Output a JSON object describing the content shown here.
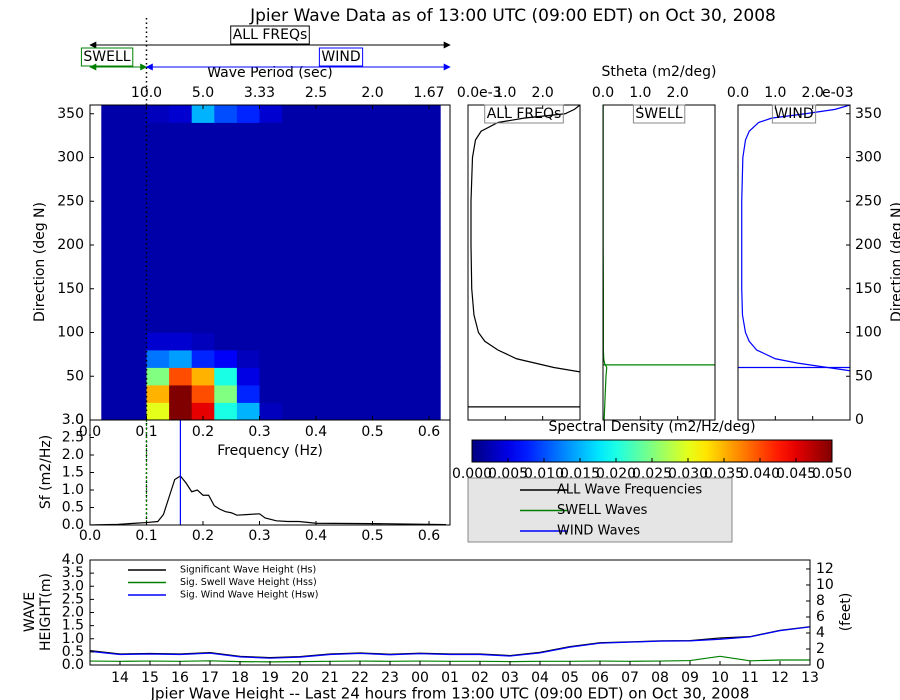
{
  "chart_data": [
    {
      "type": "heatmap",
      "title": "Jpier Wave Data as of 13:00 UTC (09:00 EDT) on Oct 30, 2008",
      "annotations": {
        "all": "ALL FREQs",
        "swell": "SWELL",
        "wind": "WIND"
      },
      "separation_frequency": 0.1,
      "xlabel": "Frequency (Hz)",
      "ylabel": "Direction (deg N)",
      "x2label": "Wave Period (sec)",
      "xlim": [
        0,
        0.64
      ],
      "ylim": [
        0,
        360
      ],
      "xticks": [
        {
          "value": 0,
          "label": "0.0"
        },
        0.1,
        0.2,
        0.3,
        0.4,
        0.5,
        0.6
      ],
      "yticks": [
        0,
        50,
        100,
        150,
        200,
        250,
        300,
        350
      ],
      "x2ticks": [
        {
          "value": 0.1,
          "label": "10.0"
        },
        {
          "value": 0.2,
          "label": "5.0"
        },
        {
          "value": 0.3,
          "label": "3.33"
        },
        {
          "value": 0.4,
          "label": "2.5"
        },
        {
          "value": 0.5,
          "label": "2.0"
        },
        {
          "value": 0.6,
          "label": "1.67"
        }
      ],
      "x_edges": [
        0.02,
        0.06,
        0.1,
        0.14,
        0.18,
        0.22,
        0.26,
        0.3,
        0.34,
        0.38,
        0.42,
        0.46,
        0.5,
        0.54,
        0.58,
        0.62
      ],
      "y_edges": [
        0,
        20,
        40,
        60,
        80,
        100,
        120,
        140,
        160,
        180,
        200,
        220,
        240,
        260,
        280,
        300,
        320,
        340,
        360
      ],
      "z": [
        [
          0.002,
          0.002,
          0.03,
          0.05,
          0.045,
          0.02,
          0.015,
          0.003,
          0.002,
          0.002,
          0.002,
          0.002,
          0.002,
          0.002,
          0.002
        ],
        [
          0.002,
          0.002,
          0.035,
          0.05,
          0.04,
          0.025,
          0.008,
          0.002,
          0.002,
          0.002,
          0.002,
          0.002,
          0.002,
          0.002,
          0.002
        ],
        [
          0.002,
          0.002,
          0.025,
          0.04,
          0.035,
          0.02,
          0.005,
          0.002,
          0.002,
          0.002,
          0.002,
          0.002,
          0.002,
          0.002,
          0.002
        ],
        [
          0.002,
          0.002,
          0.012,
          0.014,
          0.008,
          0.006,
          0.003,
          0.002,
          0.002,
          0.002,
          0.002,
          0.002,
          0.002,
          0.002,
          0.002
        ],
        [
          0.002,
          0.002,
          0.004,
          0.004,
          0.003,
          0.002,
          0.002,
          0.002,
          0.002,
          0.002,
          0.002,
          0.002,
          0.002,
          0.002,
          0.002
        ],
        [
          0.002,
          0.002,
          0.002,
          0.002,
          0.002,
          0.002,
          0.002,
          0.002,
          0.002,
          0.002,
          0.002,
          0.002,
          0.002,
          0.002,
          0.002
        ],
        [
          0.002,
          0.002,
          0.002,
          0.002,
          0.002,
          0.002,
          0.002,
          0.002,
          0.002,
          0.002,
          0.002,
          0.002,
          0.002,
          0.002,
          0.002
        ],
        [
          0.002,
          0.002,
          0.002,
          0.002,
          0.002,
          0.002,
          0.002,
          0.002,
          0.002,
          0.002,
          0.002,
          0.002,
          0.002,
          0.002,
          0.002
        ],
        [
          0.002,
          0.002,
          0.002,
          0.002,
          0.002,
          0.002,
          0.002,
          0.002,
          0.002,
          0.002,
          0.002,
          0.002,
          0.002,
          0.002,
          0.002
        ],
        [
          0.002,
          0.002,
          0.002,
          0.002,
          0.002,
          0.002,
          0.002,
          0.002,
          0.002,
          0.002,
          0.002,
          0.002,
          0.002,
          0.002,
          0.002
        ],
        [
          0.002,
          0.002,
          0.002,
          0.002,
          0.002,
          0.002,
          0.002,
          0.002,
          0.002,
          0.002,
          0.002,
          0.002,
          0.002,
          0.002,
          0.002
        ],
        [
          0.002,
          0.002,
          0.002,
          0.002,
          0.002,
          0.002,
          0.002,
          0.002,
          0.002,
          0.002,
          0.002,
          0.002,
          0.002,
          0.002,
          0.002
        ],
        [
          0.002,
          0.002,
          0.002,
          0.002,
          0.002,
          0.002,
          0.002,
          0.002,
          0.002,
          0.002,
          0.002,
          0.002,
          0.002,
          0.002,
          0.002
        ],
        [
          0.002,
          0.002,
          0.002,
          0.002,
          0.002,
          0.002,
          0.002,
          0.002,
          0.002,
          0.002,
          0.002,
          0.002,
          0.002,
          0.002,
          0.002
        ],
        [
          0.002,
          0.002,
          0.002,
          0.002,
          0.002,
          0.002,
          0.002,
          0.002,
          0.002,
          0.002,
          0.002,
          0.002,
          0.002,
          0.002,
          0.002
        ],
        [
          0.002,
          0.002,
          0.002,
          0.002,
          0.002,
          0.002,
          0.002,
          0.002,
          0.002,
          0.002,
          0.002,
          0.002,
          0.002,
          0.002,
          0.002
        ],
        [
          0.002,
          0.002,
          0.002,
          0.002,
          0.002,
          0.002,
          0.002,
          0.002,
          0.002,
          0.002,
          0.002,
          0.002,
          0.002,
          0.002,
          0.002
        ],
        [
          0.002,
          0.002,
          0.003,
          0.004,
          0.015,
          0.01,
          0.008,
          0.004,
          0.002,
          0.002,
          0.002,
          0.002,
          0.002,
          0.002,
          0.002
        ]
      ],
      "colorbar": {
        "label": "Spectral Density (m2/Hz/deg)",
        "colormap": "jet",
        "lim": [
          0,
          0.05
        ],
        "ticks": [
          {
            "value": 0,
            "label": "0.000"
          },
          0.005,
          {
            "value": 0.01,
            "label": "0.010"
          },
          0.015,
          {
            "value": 0.02,
            "label": "0.020"
          },
          0.025,
          {
            "value": 0.03,
            "label": "0.030"
          },
          0.035,
          {
            "value": 0.04,
            "label": "0.040"
          },
          0.045,
          {
            "value": 0.05,
            "label": "0.050"
          }
        ]
      }
    },
    {
      "type": "line",
      "title": "ALL FREQs",
      "color": "#000000",
      "xlim": [
        0,
        3
      ],
      "ylim": [
        0,
        360
      ],
      "xticks": [
        {
          "value": 0,
          "label": "0.0"
        },
        {
          "value": 1,
          "label": "1.0"
        },
        {
          "value": 2,
          "label": "2.0"
        }
      ],
      "x_offset_label": "e-3",
      "directions": [
        0,
        10,
        20,
        30,
        40,
        50,
        55,
        60,
        65,
        70,
        80,
        90,
        100,
        120,
        150,
        200,
        250,
        300,
        320,
        330,
        340,
        345,
        350,
        355,
        360
      ],
      "values": [
        8,
        8,
        7,
        6,
        5,
        3.5,
        3,
        2.3,
        1.8,
        1.3,
        0.8,
        0.45,
        0.28,
        0.16,
        0.1,
        0.08,
        0.08,
        0.12,
        0.2,
        0.35,
        0.8,
        1.5,
        2.6,
        2.85,
        3.0
      ],
      "mean_direction": 15
    },
    {
      "type": "line",
      "title": "SWELL",
      "color": "#008000",
      "xlabel": "Stheta (m2/deg)",
      "xlim": [
        0,
        3
      ],
      "ylim": [
        0,
        360
      ],
      "xticks": [
        {
          "value": 0,
          "label": "0.0"
        },
        {
          "value": 1,
          "label": "1.0"
        },
        {
          "value": 2,
          "label": "2.0"
        }
      ],
      "directions": [
        0,
        10,
        20,
        30,
        40,
        50,
        55,
        60,
        65,
        70,
        80,
        90,
        100,
        120,
        150,
        200,
        250,
        300,
        320,
        330,
        340,
        345,
        350,
        355,
        360
      ],
      "values": [
        0.03,
        0.04,
        0.05,
        0.06,
        0.07,
        0.08,
        0.09,
        0.1,
        0.04,
        0.02,
        0.01,
        0.01,
        0.01,
        0.01,
        0.01,
        0.005,
        0.005,
        0.005,
        0.005,
        0.005,
        0.005,
        0.005,
        0.005,
        0.005,
        0.005
      ],
      "mean_direction": 63
    },
    {
      "type": "line",
      "title": "WIND",
      "color": "#0000ff",
      "ylabel": "Direction (deg N)",
      "xlim": [
        0,
        3
      ],
      "ylim": [
        0,
        360
      ],
      "xticks": [
        {
          "value": 0,
          "label": "0.0"
        },
        {
          "value": 1,
          "label": "1.0"
        },
        {
          "value": 2,
          "label": "2.0"
        }
      ],
      "x_offset_label": "e-03",
      "yticks": [
        0,
        50,
        100,
        150,
        200,
        250,
        300,
        350
      ],
      "directions": [
        0,
        10,
        20,
        30,
        40,
        50,
        55,
        60,
        65,
        70,
        80,
        90,
        100,
        120,
        150,
        200,
        250,
        300,
        320,
        330,
        340,
        345,
        350,
        355,
        360
      ],
      "values": [
        8,
        8,
        7,
        6,
        5,
        4,
        3.2,
        2.4,
        1.6,
        1.0,
        0.5,
        0.3,
        0.2,
        0.12,
        0.1,
        0.1,
        0.1,
        0.13,
        0.2,
        0.3,
        0.55,
        0.9,
        1.8,
        2.6,
        3.0
      ],
      "mean_direction": 60
    },
    {
      "type": "line",
      "ylabel": "Sf (m2/Hz)",
      "xlim": [
        0,
        0.64
      ],
      "ylim": [
        0,
        3
      ],
      "xticks": [
        {
          "value": 0,
          "label": "0.0"
        },
        0.1,
        0.2,
        0.3,
        0.4,
        0.5,
        0.6
      ],
      "yticks": [
        {
          "value": 0,
          "label": "0.0"
        },
        0.5,
        {
          "value": 1,
          "label": "1.0"
        },
        1.5,
        {
          "value": 2,
          "label": "2.0"
        },
        2.5,
        {
          "value": 3,
          "label": "3.0"
        }
      ],
      "x": [
        0,
        0.05,
        0.08,
        0.1,
        0.12,
        0.13,
        0.14,
        0.15,
        0.16,
        0.17,
        0.18,
        0.19,
        0.2,
        0.21,
        0.22,
        0.23,
        0.24,
        0.25,
        0.26,
        0.28,
        0.3,
        0.31,
        0.33,
        0.35,
        0.37,
        0.4,
        0.5,
        0.6,
        0.63
      ],
      "series": [
        {
          "name": "ALL Wave Frequencies",
          "color": "#000000",
          "values": [
            0,
            0.02,
            0.05,
            0.07,
            0.1,
            0.3,
            0.8,
            1.3,
            1.4,
            1.2,
            0.95,
            1.0,
            0.85,
            0.85,
            0.55,
            0.45,
            0.38,
            0.35,
            0.28,
            0.3,
            0.32,
            0.2,
            0.12,
            0.1,
            0.1,
            0.05,
            0.04,
            0.02,
            0.01
          ]
        }
      ],
      "vlines": [
        {
          "name": "SWELL Waves",
          "color": "#008000",
          "x": 0.1
        },
        {
          "name": "WIND Waves",
          "color": "#0000ff",
          "x": 0.16
        }
      ]
    },
    {
      "type": "line",
      "xlabel": "Jpier Wave Height -- Last 24 hours from 13:00 UTC (09:00 EDT) on Oct 30, 2008",
      "ylabel": [
        "WAVE",
        "HEIGHT(m)"
      ],
      "y2label": "(feet)",
      "categories": [
        null,
        "14",
        "15",
        "16",
        "17",
        "18",
        "19",
        "20",
        "21",
        "22",
        "23",
        "00",
        "01",
        "02",
        "03",
        "04",
        "05",
        "06",
        "07",
        "08",
        "09",
        "10",
        "11",
        "12",
        "13"
      ],
      "ylim": [
        0,
        4
      ],
      "yticks": [
        {
          "value": 0,
          "label": "0.0"
        },
        0.5,
        {
          "value": 1,
          "label": "1.0"
        },
        1.5,
        {
          "value": 2,
          "label": "2.0"
        },
        2.5,
        {
          "value": 3,
          "label": "3.0"
        },
        3.5,
        {
          "value": 4,
          "label": "4.0"
        }
      ],
      "y2lim": [
        0,
        13.12
      ],
      "y2ticks": [
        0,
        2,
        4,
        6,
        8,
        10,
        12
      ],
      "series": [
        {
          "name": "Significant Wave Height (Hs)",
          "color": "#000000",
          "values": [
            0.55,
            0.42,
            0.44,
            0.42,
            0.47,
            0.33,
            0.28,
            0.32,
            0.42,
            0.46,
            0.41,
            0.45,
            0.42,
            0.42,
            0.36,
            0.48,
            0.7,
            0.85,
            0.88,
            0.92,
            0.93,
            1.03,
            1.08,
            1.32,
            1.46
          ]
        },
        {
          "name": "Sig. Swell Wave Height (Hss)",
          "color": "#008000",
          "values": [
            0.15,
            0.14,
            0.15,
            0.14,
            0.16,
            0.13,
            0.12,
            0.13,
            0.14,
            0.15,
            0.14,
            0.15,
            0.14,
            0.14,
            0.13,
            0.14,
            0.14,
            0.15,
            0.14,
            0.15,
            0.17,
            0.33,
            0.16,
            0.19,
            0.19
          ]
        },
        {
          "name": "Sig. Wind Wave Height (Hsw)",
          "color": "#0000ff",
          "values": [
            0.52,
            0.4,
            0.42,
            0.4,
            0.45,
            0.31,
            0.26,
            0.3,
            0.4,
            0.44,
            0.39,
            0.43,
            0.4,
            0.4,
            0.34,
            0.46,
            0.68,
            0.83,
            0.87,
            0.91,
            0.92,
            0.98,
            1.07,
            1.31,
            1.45
          ]
        }
      ]
    }
  ]
}
